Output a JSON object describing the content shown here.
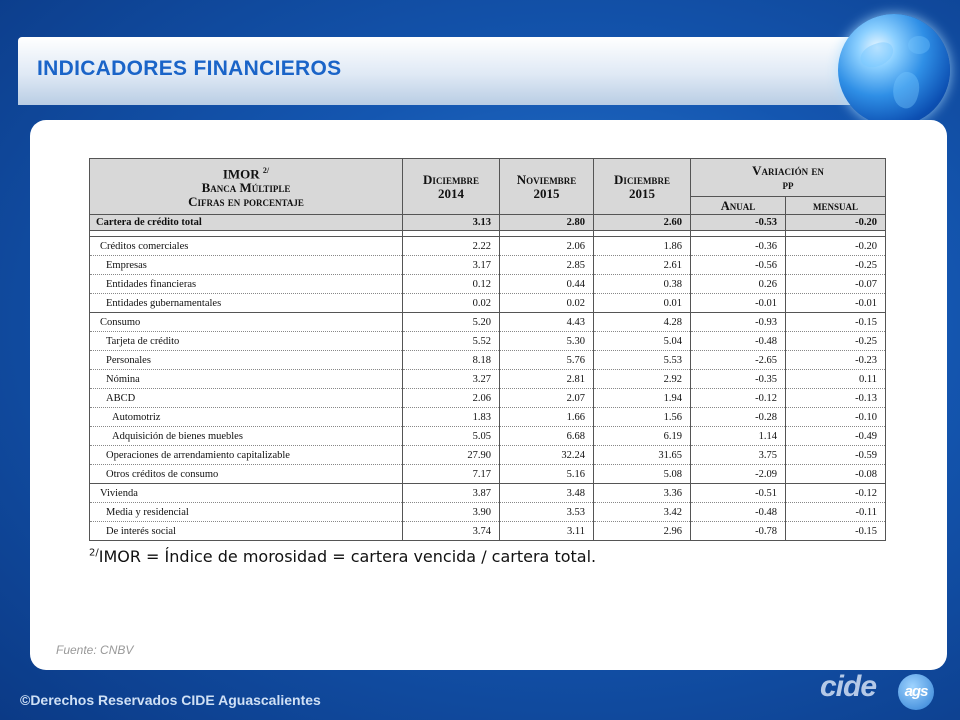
{
  "header": {
    "title": "INDICADORES FINANCIEROS"
  },
  "table": {
    "head": {
      "label_line1": "IMOR",
      "label_sup": "2/",
      "label_line2": "Banca Múltiple",
      "label_line3": "Cifras en porcentaje",
      "col1_line1": "Diciembre",
      "col1_line2": "2014",
      "col2_line1": "Noviembre",
      "col2_line2": "2015",
      "col3_line1": "Diciembre",
      "col3_line2": "2015",
      "variation_line1": "Variación en",
      "variation_line2": "pp",
      "annual": "Anual",
      "monthly": "mensual"
    },
    "total": {
      "label": "Cartera de crédito total",
      "values": [
        "3.13",
        "2.80",
        "2.60",
        "-0.53",
        "-0.20"
      ]
    },
    "rows": [
      {
        "label": "Créditos comerciales",
        "values": [
          "2.22",
          "2.06",
          "1.86",
          "-0.36",
          "-0.20"
        ]
      },
      {
        "label": "Empresas",
        "values": [
          "3.17",
          "2.85",
          "2.61",
          "-0.56",
          "-0.25"
        ]
      },
      {
        "label": "Entidades financieras",
        "values": [
          "0.12",
          "0.44",
          "0.38",
          "0.26",
          "-0.07"
        ]
      },
      {
        "label": "Entidades gubernamentales",
        "values": [
          "0.02",
          "0.02",
          "0.01",
          "-0.01",
          "-0.01"
        ]
      },
      {
        "label": "Consumo",
        "values": [
          "5.20",
          "4.43",
          "4.28",
          "-0.93",
          "-0.15"
        ]
      },
      {
        "label": "Tarjeta de crédito",
        "values": [
          "5.52",
          "5.30",
          "5.04",
          "-0.48",
          "-0.25"
        ]
      },
      {
        "label": "Personales",
        "values": [
          "8.18",
          "5.76",
          "5.53",
          "-2.65",
          "-0.23"
        ]
      },
      {
        "label": "Nómina",
        "values": [
          "3.27",
          "2.81",
          "2.92",
          "-0.35",
          "0.11"
        ]
      },
      {
        "label": "ABCD",
        "values": [
          "2.06",
          "2.07",
          "1.94",
          "-0.12",
          "-0.13"
        ]
      },
      {
        "label": "Automotriz",
        "values": [
          "1.83",
          "1.66",
          "1.56",
          "-0.28",
          "-0.10"
        ]
      },
      {
        "label": "Adquisición de bienes muebles",
        "values": [
          "5.05",
          "6.68",
          "6.19",
          "1.14",
          "-0.49"
        ]
      },
      {
        "label": "Operaciones de arrendamiento capitalizable",
        "values": [
          "27.90",
          "32.24",
          "31.65",
          "3.75",
          "-0.59"
        ]
      },
      {
        "label": "Otros créditos de consumo",
        "values": [
          "7.17",
          "5.16",
          "5.08",
          "-2.09",
          "-0.08"
        ]
      },
      {
        "label": "Vivienda",
        "values": [
          "3.87",
          "3.48",
          "3.36",
          "-0.51",
          "-0.12"
        ]
      },
      {
        "label": "Media y residencial",
        "values": [
          "3.90",
          "3.53",
          "3.42",
          "-0.48",
          "-0.11"
        ]
      },
      {
        "label": "De interés social",
        "values": [
          "3.74",
          "3.11",
          "2.96",
          "-0.78",
          "-0.15"
        ]
      }
    ]
  },
  "footnote": {
    "sup": "2/",
    "text": "IMOR = Índice de morosidad = cartera vencida / cartera total."
  },
  "source": "Fuente: CNBV",
  "footer": {
    "copyright": "©Derechos Reservados CIDE Aguascalientes",
    "logo_text": "cide",
    "logo_badge": "ags"
  }
}
